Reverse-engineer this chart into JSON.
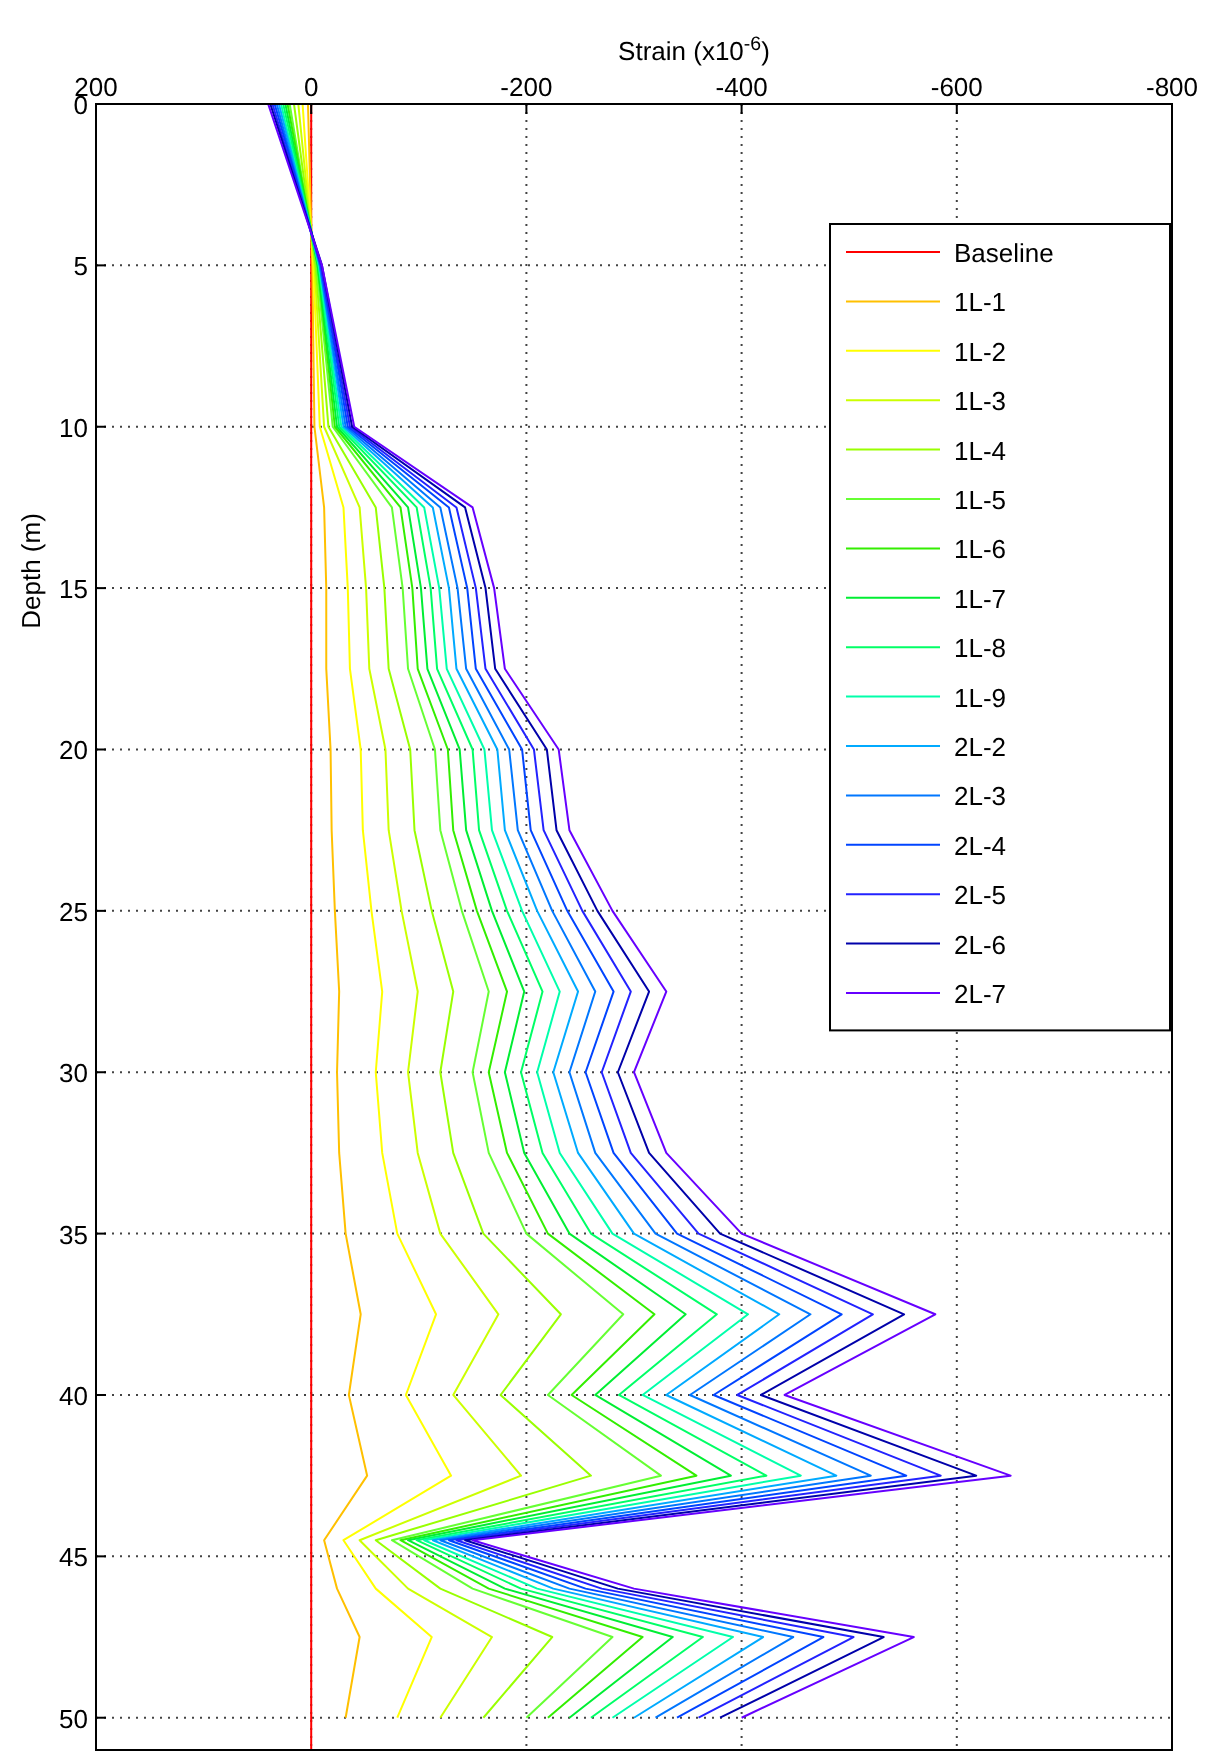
{
  "chart_data": {
    "type": "line",
    "xlabel": "Strain (x10$^{-6}$)",
    "ylabel": "Depth (m)",
    "xlim": [
      200,
      -800
    ],
    "xticks": [
      200,
      0,
      -200,
      -400,
      -600,
      -800
    ],
    "ylim": [
      51,
      0
    ],
    "yticks": [
      0,
      5,
      10,
      15,
      20,
      25,
      30,
      35,
      40,
      45,
      50
    ],
    "grid": true,
    "legend": "top right",
    "series": [
      {
        "name": "Baseline",
        "color": "#ff0000",
        "x": [
          0,
          0
        ],
        "values": [
          0,
          51
        ]
      },
      {
        "name": "1L-1",
        "color": "#ffc000",
        "x": [
          3,
          -1,
          -3,
          -12,
          -14,
          -14,
          -18,
          -19,
          -22,
          -26,
          -24,
          -26,
          -32,
          -46,
          -35,
          -52,
          -12,
          -24,
          -45,
          -32
        ],
        "values": [
          0,
          5,
          10,
          12.5,
          15,
          17.5,
          20,
          22.5,
          25,
          27.5,
          30,
          32.5,
          35,
          37.5,
          40,
          42.5,
          44.5,
          46,
          47.5,
          50
        ]
      },
      {
        "name": "1L-2",
        "color": "#ffff00",
        "x": [
          8,
          -2,
          -8,
          -30,
          -34,
          -36,
          -46,
          -48,
          -56,
          -66,
          -60,
          -66,
          -80,
          -116,
          -88,
          -130,
          -30,
          -60,
          -112,
          -80
        ],
        "values": [
          0,
          5,
          10,
          12.5,
          15,
          17.5,
          20,
          22.5,
          25,
          27.5,
          30,
          32.5,
          35,
          37.5,
          40,
          42.5,
          44.5,
          46,
          47.5,
          50
        ]
      },
      {
        "name": "1L-3",
        "color": "#ccff00",
        "x": [
          12,
          -3,
          -12,
          -45,
          -51,
          -54,
          -69,
          -72,
          -84,
          -99,
          -90,
          -99,
          -120,
          -174,
          -132,
          -195,
          -45,
          -90,
          -168,
          -120
        ],
        "values": [
          0,
          5,
          10,
          12.5,
          15,
          17.5,
          20,
          22.5,
          25,
          27.5,
          30,
          32.5,
          35,
          37.5,
          40,
          42.5,
          44.5,
          46,
          47.5,
          50
        ]
      },
      {
        "name": "1L-4",
        "color": "#99ff00",
        "x": [
          16,
          -4,
          -16,
          -60,
          -68,
          -72,
          -92,
          -96,
          -112,
          -132,
          -120,
          -132,
          -160,
          -232,
          -176,
          -260,
          -60,
          -120,
          -224,
          -160
        ],
        "values": [
          0,
          5,
          10,
          12.5,
          15,
          17.5,
          20,
          22.5,
          25,
          27.5,
          30,
          32.5,
          35,
          37.5,
          40,
          42.5,
          44.5,
          46,
          47.5,
          50
        ]
      },
      {
        "name": "1L-5",
        "color": "#66ff33",
        "x": [
          20,
          -5,
          -20,
          -75,
          -85,
          -90,
          -115,
          -120,
          -140,
          -165,
          -150,
          -165,
          -200,
          -290,
          -220,
          -325,
          -75,
          -150,
          -280,
          -200
        ],
        "values": [
          0,
          5,
          10,
          12.5,
          15,
          17.5,
          20,
          22.5,
          25,
          27.5,
          30,
          32.5,
          35,
          37.5,
          40,
          42.5,
          44.5,
          46,
          47.5,
          50
        ]
      },
      {
        "name": "1L-6",
        "color": "#33ee00",
        "x": [
          22,
          -6,
          -22,
          -83,
          -94,
          -99,
          -127,
          -132,
          -154,
          -182,
          -165,
          -182,
          -220,
          -319,
          -242,
          -358,
          -83,
          -165,
          -308,
          -220
        ],
        "values": [
          0,
          5,
          10,
          12.5,
          15,
          17.5,
          20,
          22.5,
          25,
          27.5,
          30,
          32.5,
          35,
          37.5,
          40,
          42.5,
          44.5,
          46,
          47.5,
          50
        ]
      },
      {
        "name": "1L-7",
        "color": "#00ee33",
        "x": [
          24,
          -6,
          -24,
          -90,
          -102,
          -108,
          -138,
          -144,
          -168,
          -198,
          -180,
          -198,
          -240,
          -348,
          -264,
          -390,
          -90,
          -180,
          -336,
          -240
        ],
        "values": [
          0,
          5,
          10,
          12.5,
          15,
          17.5,
          20,
          22.5,
          25,
          27.5,
          30,
          32.5,
          35,
          37.5,
          40,
          42.5,
          44.5,
          46,
          47.5,
          50
        ]
      },
      {
        "name": "1L-8",
        "color": "#00ff66",
        "x": [
          26,
          -7,
          -26,
          -98,
          -111,
          -117,
          -150,
          -156,
          -182,
          -215,
          -195,
          -215,
          -260,
          -377,
          -286,
          -423,
          -98,
          -195,
          -364,
          -260
        ],
        "values": [
          0,
          5,
          10,
          12.5,
          15,
          17.5,
          20,
          22.5,
          25,
          27.5,
          30,
          32.5,
          35,
          37.5,
          40,
          42.5,
          44.5,
          46,
          47.5,
          50
        ]
      },
      {
        "name": "1L-9",
        "color": "#00ffaa",
        "x": [
          28,
          -7,
          -28,
          -105,
          -119,
          -126,
          -161,
          -168,
          -196,
          -231,
          -210,
          -231,
          -280,
          -406,
          -308,
          -455,
          -105,
          -210,
          -392,
          -280
        ],
        "values": [
          0,
          5,
          10,
          12.5,
          15,
          17.5,
          20,
          22.5,
          25,
          27.5,
          30,
          32.5,
          35,
          37.5,
          40,
          42.5,
          44.5,
          46,
          47.5,
          50
        ]
      },
      {
        "name": "2L-2",
        "color": "#00aaff",
        "x": [
          30,
          -8,
          -30,
          -113,
          -128,
          -135,
          -173,
          -180,
          -210,
          -248,
          -225,
          -248,
          -300,
          -435,
          -330,
          -488,
          -113,
          -225,
          -420,
          -300
        ],
        "values": [
          0,
          5,
          10,
          12.5,
          15,
          17.5,
          20,
          22.5,
          25,
          27.5,
          30,
          32.5,
          35,
          37.5,
          40,
          42.5,
          44.5,
          46,
          47.5,
          50
        ]
      },
      {
        "name": "2L-3",
        "color": "#0077ff",
        "x": [
          32,
          -8,
          -32,
          -120,
          -136,
          -144,
          -184,
          -192,
          -224,
          -264,
          -240,
          -264,
          -320,
          -464,
          -352,
          -520,
          -120,
          -240,
          -448,
          -320
        ],
        "values": [
          0,
          5,
          10,
          12.5,
          15,
          17.5,
          20,
          22.5,
          25,
          27.5,
          30,
          32.5,
          35,
          37.5,
          40,
          42.5,
          44.5,
          46,
          47.5,
          50
        ]
      },
      {
        "name": "2L-4",
        "color": "#0044ff",
        "x": [
          34,
          -9,
          -34,
          -128,
          -145,
          -153,
          -196,
          -204,
          -238,
          -281,
          -255,
          -281,
          -340,
          -493,
          -374,
          -553,
          -128,
          -255,
          -476,
          -340
        ],
        "values": [
          0,
          5,
          10,
          12.5,
          15,
          17.5,
          20,
          22.5,
          25,
          27.5,
          30,
          32.5,
          35,
          37.5,
          40,
          42.5,
          44.5,
          46,
          47.5,
          50
        ]
      },
      {
        "name": "2L-5",
        "color": "#2222ff",
        "x": [
          36,
          -9,
          -36,
          -135,
          -153,
          -162,
          -207,
          -216,
          -252,
          -297,
          -270,
          -297,
          -360,
          -522,
          -396,
          -585,
          -135,
          -270,
          -504,
          -360
        ],
        "values": [
          0,
          5,
          10,
          12.5,
          15,
          17.5,
          20,
          22.5,
          25,
          27.5,
          30,
          32.5,
          35,
          37.5,
          40,
          42.5,
          44.5,
          46,
          47.5,
          50
        ]
      },
      {
        "name": "2L-6",
        "color": "#0000aa",
        "x": [
          38,
          -10,
          -38,
          -143,
          -162,
          -171,
          -219,
          -228,
          -266,
          -314,
          -285,
          -314,
          -380,
          -551,
          -418,
          -618,
          -143,
          -285,
          -532,
          -380
        ],
        "values": [
          0,
          5,
          10,
          12.5,
          15,
          17.5,
          20,
          22.5,
          25,
          27.5,
          30,
          32.5,
          35,
          37.5,
          40,
          42.5,
          44.5,
          46,
          47.5,
          50
        ]
      },
      {
        "name": "2L-7",
        "color": "#6600ff",
        "x": [
          40,
          -10,
          -40,
          -150,
          -170,
          -180,
          -230,
          -240,
          -280,
          -330,
          -300,
          -330,
          -400,
          -580,
          -440,
          -650,
          -150,
          -300,
          -560,
          -400
        ],
        "values": [
          0,
          5,
          10,
          12.5,
          15,
          17.5,
          20,
          22.5,
          25,
          27.5,
          30,
          32.5,
          35,
          37.5,
          40,
          42.5,
          44.5,
          46,
          47.5,
          50
        ]
      }
    ]
  }
}
